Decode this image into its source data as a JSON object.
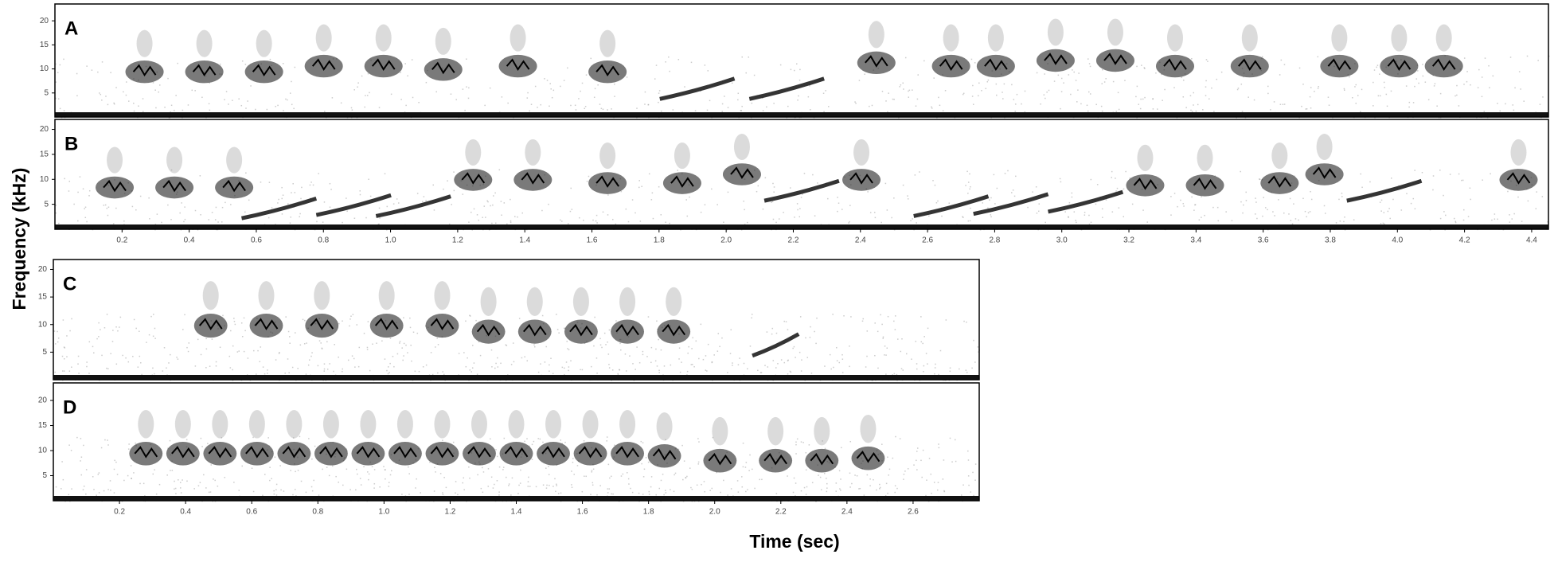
{
  "chart_data": [
    {
      "type": "spectrogram",
      "label": "A",
      "ylim": [
        0,
        23.5
      ],
      "yticks": [
        5,
        10,
        15,
        20
      ]
    },
    {
      "type": "spectrogram",
      "label": "B",
      "ylim": [
        0,
        22
      ],
      "yticks": [
        5,
        10,
        15,
        20
      ],
      "xlim": [
        0,
        4.45
      ],
      "xticks": [
        0.2,
        0.4,
        0.6,
        0.8,
        {
          "value": 1,
          "label": "1.0"
        },
        1.2,
        1.4,
        1.6,
        1.8,
        {
          "value": 2,
          "label": "2.0"
        },
        2.2,
        2.4,
        2.6,
        2.8,
        {
          "value": 3,
          "label": "3.0"
        },
        3.2,
        3.4,
        3.6,
        3.8,
        {
          "value": 4,
          "label": "4.0"
        },
        4.2,
        4.4
      ]
    },
    {
      "type": "spectrogram",
      "label": "C",
      "ylim": [
        0,
        21.8
      ],
      "yticks": [
        5,
        10,
        15,
        20
      ]
    },
    {
      "type": "spectrogram",
      "label": "D",
      "ylim": [
        0,
        23.5
      ],
      "yticks": [
        5,
        10,
        15,
        20
      ],
      "xlim": [
        0,
        2.8
      ],
      "xticks": [
        0.2,
        0.4,
        0.6,
        0.8,
        {
          "value": 1,
          "label": "1.0"
        },
        1.2,
        1.4,
        1.6,
        1.8,
        {
          "value": 2,
          "label": "2.0"
        },
        2.2,
        2.4,
        2.6
      ]
    }
  ],
  "ylabel": "Frequency (kHz)",
  "xlabel": "Time (sec)"
}
